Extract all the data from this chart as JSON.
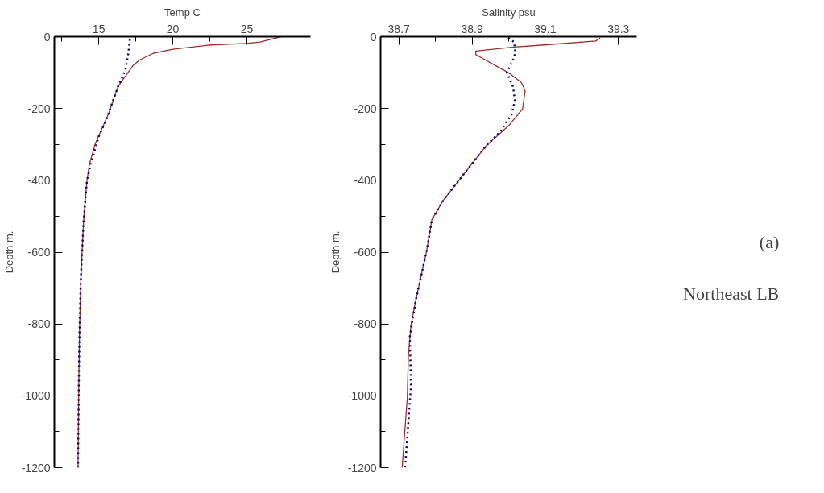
{
  "chart_data": [
    {
      "type": "line",
      "title": "Temp C",
      "ylabel": "Depth m.",
      "xlim": [
        12,
        29.3
      ],
      "ylim": [
        -1200,
        0
      ],
      "xticks": [
        {
          "value": 12.5,
          "label": null
        },
        15,
        {
          "value": 17.5,
          "label": null
        },
        20,
        {
          "value": 22.5,
          "label": null
        },
        25,
        {
          "value": 27.5,
          "label": null
        }
      ],
      "yticks": [
        -1200,
        {
          "value": -1100,
          "label": null
        },
        -1000,
        {
          "value": -900,
          "label": null
        },
        -800,
        {
          "value": -700,
          "label": null
        },
        -600,
        {
          "value": -500,
          "label": null
        },
        -400,
        {
          "value": -300,
          "label": null
        },
        -200,
        {
          "value": -100,
          "label": null
        },
        0
      ],
      "grid": false,
      "series": [
        {
          "color": "#a52a2a",
          "line_style": "solid",
          "x": [
            27.3,
            25.9,
            25.0,
            22.6,
            20.0,
            18.7,
            17.75,
            17.3,
            16.3,
            15.65,
            14.77,
            14.37,
            14.2,
            13.97,
            13.8,
            13.7,
            13.65,
            13.6
          ],
          "values": [
            0,
            -15,
            -19,
            -23,
            -35,
            -46,
            -65,
            -81,
            -139,
            -216,
            -297,
            -355,
            -402,
            -517,
            -665,
            -819,
            -974,
            -1200
          ]
        },
        {
          "color": "#00008b",
          "line_style": "dotted",
          "x": [
            17.1,
            17.0,
            16.8,
            16.3,
            15.5,
            15.0,
            14.45,
            14.2,
            13.97,
            13.8,
            13.7,
            13.65,
            13.6
          ],
          "values": [
            -7,
            -46,
            -93,
            -139,
            -232,
            -278,
            -355,
            -402,
            -517,
            -665,
            -819,
            -974,
            -1200
          ]
        }
      ]
    },
    {
      "type": "line",
      "title": "Salinity psu",
      "ylabel": "Depth m.",
      "xlim": [
        38.65,
        39.35
      ],
      "ylim": [
        -1200,
        0
      ],
      "xticks": [
        38.7,
        {
          "value": 38.8,
          "label": null
        },
        38.9,
        {
          "value": 39.0,
          "label": null
        },
        39.1,
        {
          "value": 39.2,
          "label": null
        },
        39.3
      ],
      "yticks": [
        -1200,
        {
          "value": -1100,
          "label": null
        },
        -1000,
        {
          "value": -900,
          "label": null
        },
        -800,
        {
          "value": -700,
          "label": null
        },
        -600,
        {
          "value": -500,
          "label": null
        },
        -400,
        {
          "value": -300,
          "label": null
        },
        -200,
        {
          "value": -100,
          "label": null
        },
        0
      ],
      "grid": false,
      "annotations": [
        "(a)",
        "Northeast LB"
      ],
      "series": [
        {
          "color": "#a52a2a",
          "line_style": "solid",
          "x": [
            39.25,
            39.238,
            39.097,
            39.015,
            38.91,
            38.91,
            38.999,
            39.035,
            39.045,
            39.038,
            39.0,
            38.94,
            38.874,
            38.821,
            38.79,
            38.776,
            38.746,
            38.733,
            38.726,
            38.723,
            38.709
          ],
          "values": [
            -4,
            -12,
            -23,
            -29,
            -40,
            -50,
            -100,
            -128,
            -151,
            -201,
            -248,
            -302,
            -387,
            -456,
            -510,
            -596,
            -735,
            -804,
            -889,
            -1005,
            -1200
          ]
        },
        {
          "color": "#00008b",
          "line_style": "dotted",
          "x": [
            38.999,
            39.015,
            39.018,
            39.015,
            38.995,
            39.012,
            39.017,
            39.008,
            38.992,
            38.979,
            38.94,
            38.874,
            38.821,
            38.79,
            38.776,
            38.746,
            38.73,
            38.733,
            38.717
          ],
          "values": [
            -4,
            -15,
            -43,
            -58,
            -100,
            -139,
            -178,
            -217,
            -240,
            -263,
            -302,
            -387,
            -456,
            -510,
            -596,
            -735,
            -835,
            -974,
            -1200
          ]
        }
      ]
    }
  ]
}
